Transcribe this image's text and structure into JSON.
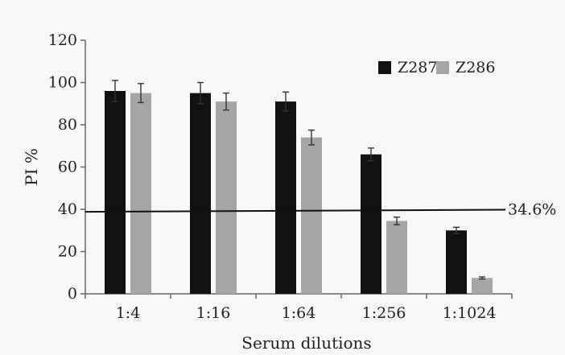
{
  "chart_data": {
    "type": "bar",
    "categories": [
      "1:4",
      "1:16",
      "1:64",
      "1:256",
      "1:1024"
    ],
    "series": [
      {
        "name": "Z287",
        "values": [
          96,
          95,
          91,
          66,
          30
        ],
        "errors": [
          5,
          5,
          4.5,
          3,
          1.5
        ],
        "color": "#111111"
      },
      {
        "name": "Z286",
        "values": [
          95,
          91,
          74,
          34.5,
          7.5
        ],
        "errors": [
          4.5,
          4,
          3.5,
          1.8,
          0.5
        ],
        "color": "#a6a6a6"
      }
    ],
    "xlabel": "Serum dilutions",
    "ylabel": "PI %",
    "ylim": [
      0,
      120
    ],
    "yticks": [
      "0",
      "20",
      "40",
      "60",
      "80",
      "100",
      "120"
    ],
    "grid": false,
    "legend": "top-right",
    "reference_line": {
      "label": "34.6%",
      "y_start": 38.8,
      "y_end": 39.8,
      "color": "#111111"
    }
  }
}
